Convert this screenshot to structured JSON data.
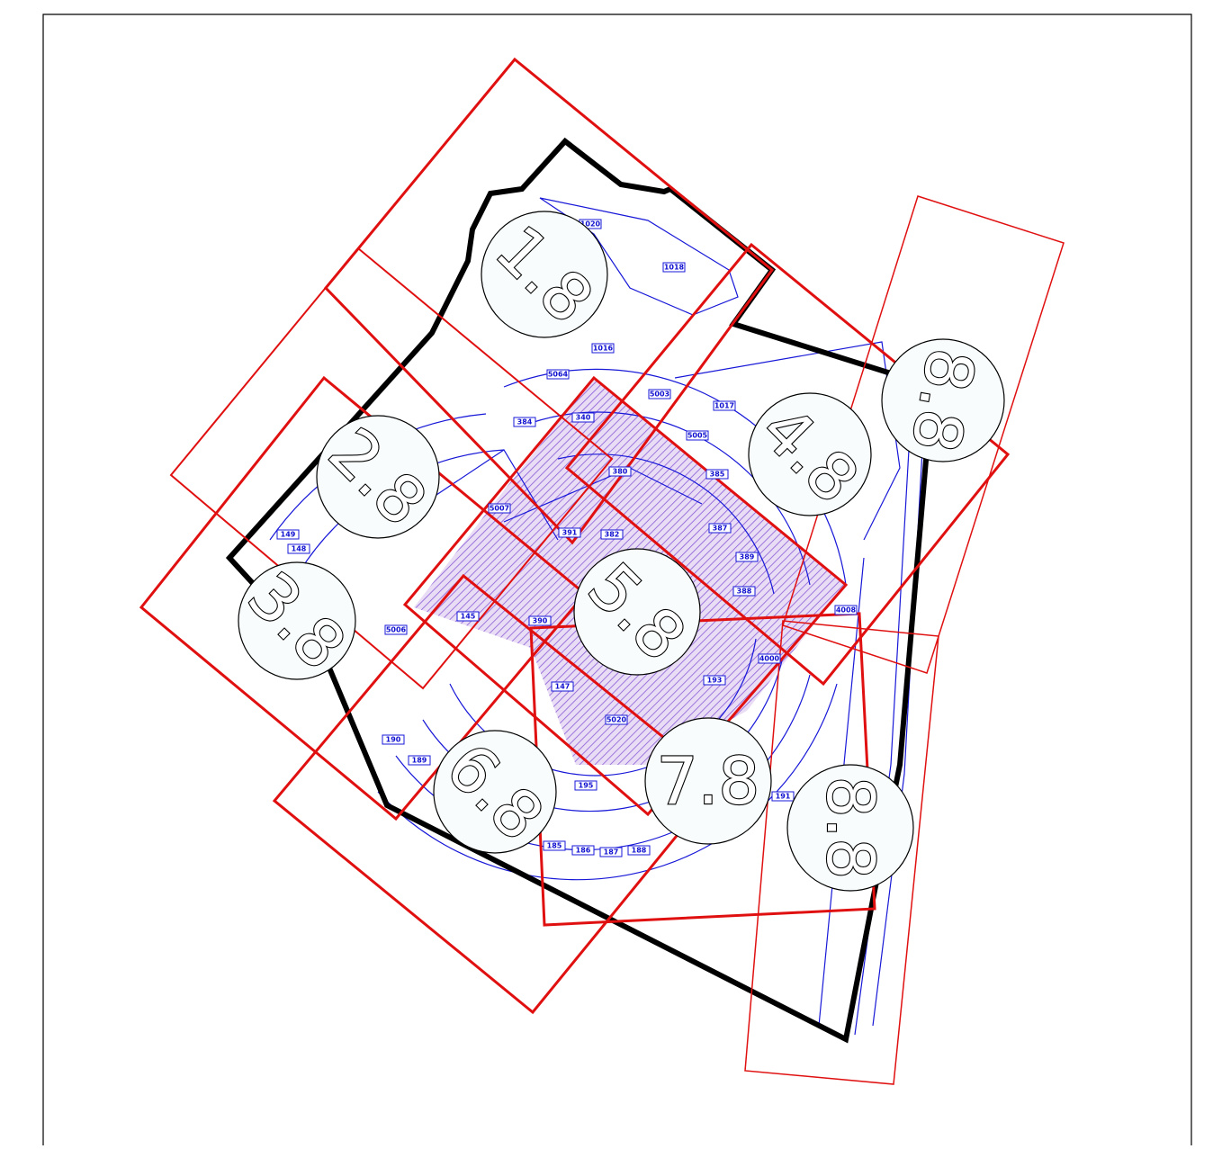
{
  "sheets": [
    {
      "label": "1.8"
    },
    {
      "label": "2.8"
    },
    {
      "label": "3.8"
    },
    {
      "label": "4.8"
    },
    {
      "label": "5.8"
    },
    {
      "label": "6.8"
    },
    {
      "label": "7.8"
    },
    {
      "label": "8.8"
    },
    {
      "label": "8.8"
    }
  ],
  "parcels": [
    {
      "label": "1018"
    },
    {
      "label": "1016"
    },
    {
      "label": "1017"
    },
    {
      "label": "1020"
    },
    {
      "label": "5064"
    },
    {
      "label": "5003"
    },
    {
      "label": "5005"
    },
    {
      "label": "340"
    },
    {
      "label": "380"
    },
    {
      "label": "382"
    },
    {
      "label": "384"
    },
    {
      "label": "385"
    },
    {
      "label": "387"
    },
    {
      "label": "388"
    },
    {
      "label": "389"
    },
    {
      "label": "390"
    },
    {
      "label": "391"
    },
    {
      "label": "147"
    },
    {
      "label": "145"
    },
    {
      "label": "148"
    },
    {
      "label": "149"
    },
    {
      "label": "185"
    },
    {
      "label": "186"
    },
    {
      "label": "187"
    },
    {
      "label": "188"
    },
    {
      "label": "189"
    },
    {
      "label": "190"
    },
    {
      "label": "191"
    },
    {
      "label": "193"
    },
    {
      "label": "195"
    },
    {
      "label": "4000"
    },
    {
      "label": "4008"
    },
    {
      "label": "5006"
    },
    {
      "label": "5007"
    },
    {
      "label": "5020"
    }
  ]
}
